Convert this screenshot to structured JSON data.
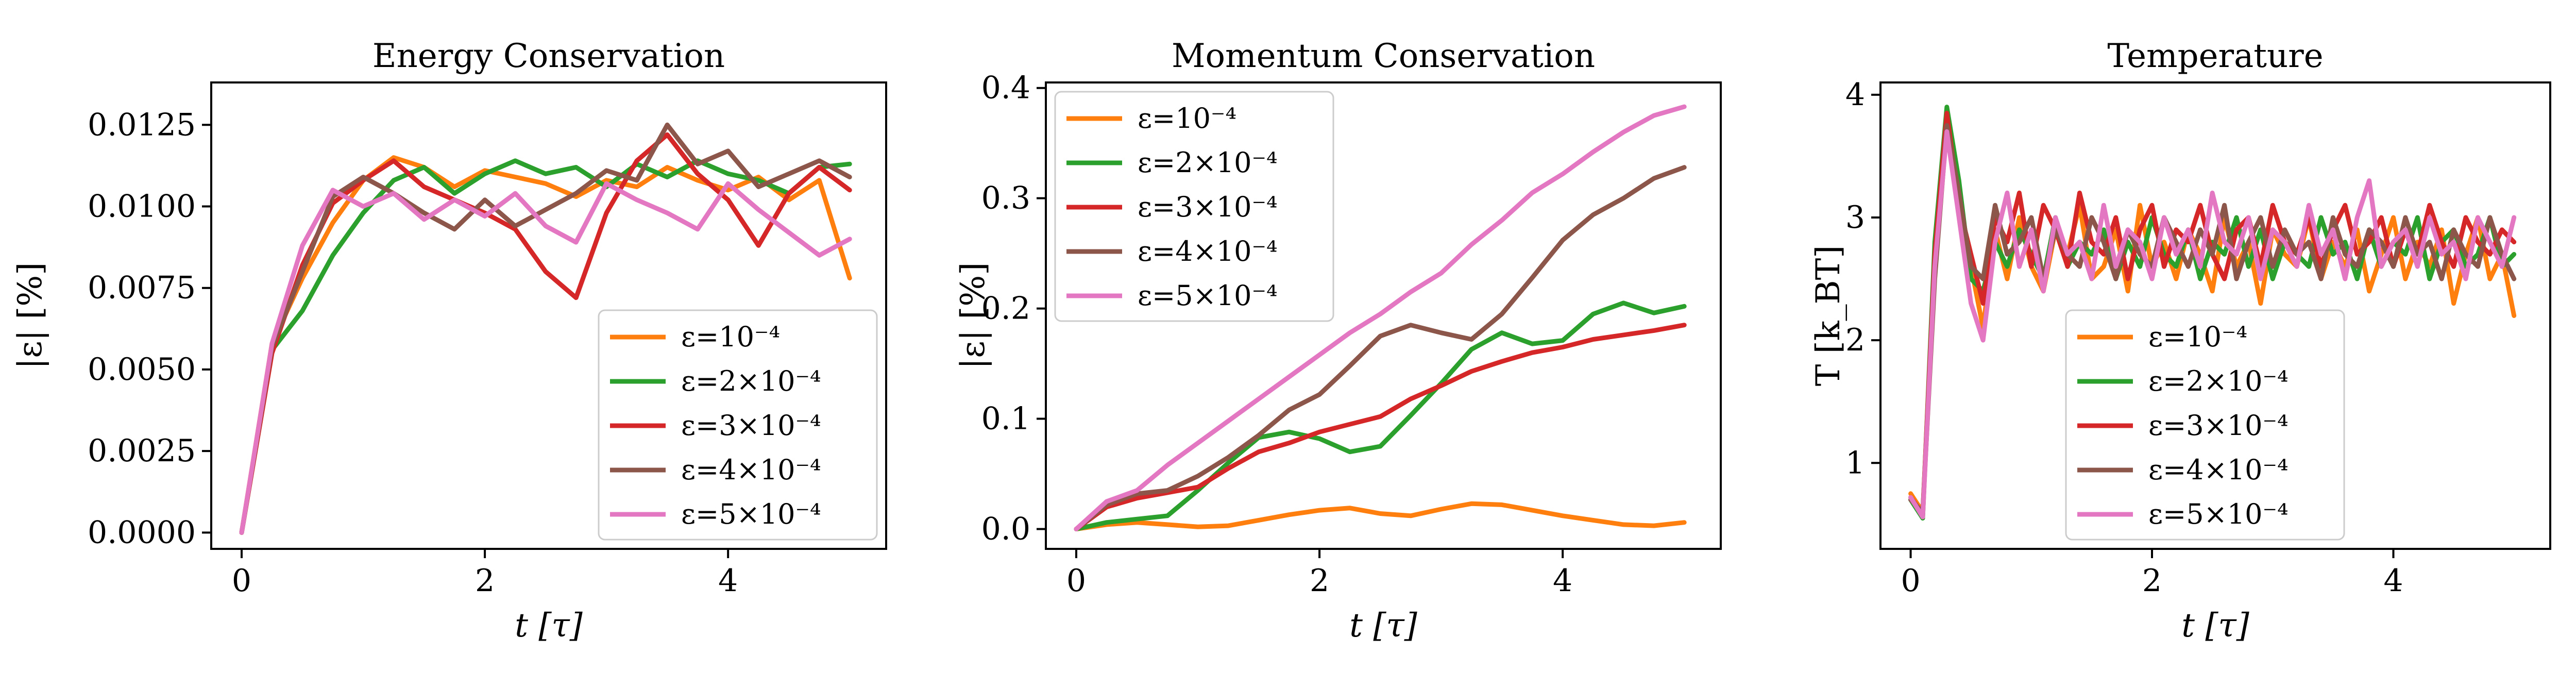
{
  "figure": {
    "legend_labels": [
      "ε=10⁻⁴",
      "ε=2×10⁻⁴",
      "ε=3×10⁻⁴",
      "ε=4×10⁻⁴",
      "ε=5×10⁻⁴"
    ]
  },
  "chart_data": [
    {
      "type": "line",
      "title": "Energy Conservation",
      "xlabel": "t [τ]",
      "ylabel": "|ε| [%]",
      "xlim": [
        -0.25,
        5.3
      ],
      "ylim": [
        -0.0005,
        0.0138
      ],
      "xticks": [
        0,
        2,
        4
      ],
      "xtick_labels": [
        "0",
        "2",
        "4"
      ],
      "yticks": [
        0,
        0.0025,
        0.005,
        0.0075,
        0.01,
        0.0125
      ],
      "ytick_labels": [
        "0.0000",
        "0.0025",
        "0.0050",
        "0.0075",
        "0.0100",
        "0.0125"
      ],
      "grid": false,
      "legend_position": "lower-right",
      "x": [
        0,
        0.25,
        0.5,
        0.75,
        1,
        1.25,
        1.5,
        1.75,
        2,
        2.25,
        2.5,
        2.75,
        3,
        3.25,
        3.5,
        3.75,
        4,
        4.25,
        4.5,
        4.75,
        5
      ],
      "series": [
        {
          "name": "ε=10⁻⁴",
          "color": "#ff7f0e",
          "values": [
            0,
            0.0058,
            0.0078,
            0.0095,
            0.0108,
            0.0115,
            0.0112,
            0.0106,
            0.0111,
            0.0109,
            0.0107,
            0.0103,
            0.0108,
            0.0106,
            0.0112,
            0.0108,
            0.0105,
            0.0109,
            0.0102,
            0.0108,
            0.0078
          ]
        },
        {
          "name": "ε=2×10⁻⁴",
          "color": "#2ca02c",
          "values": [
            0,
            0.0056,
            0.0068,
            0.0085,
            0.0098,
            0.0108,
            0.0112,
            0.0104,
            0.011,
            0.0114,
            0.011,
            0.0112,
            0.0106,
            0.0113,
            0.0109,
            0.0114,
            0.011,
            0.0108,
            0.0104,
            0.0112,
            0.0113
          ]
        },
        {
          "name": "ε=3×10⁻⁴",
          "color": "#d62728",
          "values": [
            0,
            0.0055,
            0.0082,
            0.0101,
            0.0108,
            0.0114,
            0.0106,
            0.0102,
            0.0098,
            0.0093,
            0.008,
            0.0072,
            0.0098,
            0.0114,
            0.0122,
            0.011,
            0.0102,
            0.0088,
            0.0104,
            0.0112,
            0.0105
          ]
        },
        {
          "name": "ε=4×10⁻⁴",
          "color": "#8c564b",
          "values": [
            0,
            0.0057,
            0.008,
            0.0103,
            0.0109,
            0.0104,
            0.0098,
            0.0093,
            0.0102,
            0.0094,
            0.0099,
            0.0104,
            0.0111,
            0.0108,
            0.0125,
            0.0113,
            0.0117,
            0.0106,
            0.011,
            0.0114,
            0.0109
          ]
        },
        {
          "name": "ε=5×10⁻⁴",
          "color": "#e377c2",
          "values": [
            0,
            0.0058,
            0.0088,
            0.0105,
            0.01,
            0.0104,
            0.0096,
            0.0102,
            0.0097,
            0.0104,
            0.0094,
            0.0089,
            0.0107,
            0.0102,
            0.0098,
            0.0093,
            0.0107,
            0.0099,
            0.0092,
            0.0085,
            0.009
          ]
        }
      ]
    },
    {
      "type": "line",
      "title": "Momentum Conservation",
      "xlabel": "t [τ]",
      "ylabel": "|ε| [%]",
      "xlim": [
        -0.25,
        5.3
      ],
      "ylim": [
        -0.018,
        0.405
      ],
      "xticks": [
        0,
        2,
        4
      ],
      "xtick_labels": [
        "0",
        "2",
        "4"
      ],
      "yticks": [
        0,
        0.1,
        0.2,
        0.3,
        0.4
      ],
      "ytick_labels": [
        "0.0",
        "0.1",
        "0.2",
        "0.3",
        "0.4"
      ],
      "grid": false,
      "legend_position": "upper-left",
      "x": [
        0,
        0.25,
        0.5,
        0.75,
        1,
        1.25,
        1.5,
        1.75,
        2,
        2.25,
        2.5,
        2.75,
        3,
        3.25,
        3.5,
        3.75,
        4,
        4.25,
        4.5,
        4.75,
        5
      ],
      "series": [
        {
          "name": "ε=10⁻⁴",
          "color": "#ff7f0e",
          "values": [
            0,
            0.004,
            0.006,
            0.004,
            0.002,
            0.003,
            0.008,
            0.013,
            0.017,
            0.019,
            0.014,
            0.012,
            0.018,
            0.023,
            0.022,
            0.017,
            0.012,
            0.008,
            0.004,
            0.003,
            0.006
          ]
        },
        {
          "name": "ε=2×10⁻⁴",
          "color": "#2ca02c",
          "values": [
            0,
            0.006,
            0.009,
            0.012,
            0.035,
            0.06,
            0.083,
            0.088,
            0.082,
            0.07,
            0.075,
            0.103,
            0.132,
            0.163,
            0.178,
            0.168,
            0.171,
            0.195,
            0.205,
            0.196,
            0.202
          ]
        },
        {
          "name": "ε=3×10⁻⁴",
          "color": "#d62728",
          "values": [
            0,
            0.02,
            0.028,
            0.033,
            0.038,
            0.055,
            0.07,
            0.078,
            0.088,
            0.095,
            0.102,
            0.118,
            0.13,
            0.143,
            0.152,
            0.16,
            0.165,
            0.172,
            0.176,
            0.18,
            0.185
          ]
        },
        {
          "name": "ε=4×10⁻⁴",
          "color": "#8c564b",
          "values": [
            0,
            0.022,
            0.032,
            0.035,
            0.048,
            0.065,
            0.085,
            0.108,
            0.122,
            0.148,
            0.175,
            0.185,
            0.178,
            0.172,
            0.195,
            0.228,
            0.262,
            0.285,
            0.3,
            0.318,
            0.328
          ]
        },
        {
          "name": "ε=5×10⁻⁴",
          "color": "#e377c2",
          "values": [
            0,
            0.025,
            0.035,
            0.058,
            0.078,
            0.098,
            0.118,
            0.138,
            0.158,
            0.178,
            0.195,
            0.215,
            0.232,
            0.258,
            0.28,
            0.305,
            0.322,
            0.342,
            0.36,
            0.375,
            0.383
          ]
        }
      ]
    },
    {
      "type": "line",
      "title": "Temperature",
      "xlabel": "t [τ]",
      "ylabel": "T [k_BT]",
      "xlim": [
        -0.25,
        5.3
      ],
      "ylim": [
        0.3,
        4.1
      ],
      "xticks": [
        0,
        2,
        4
      ],
      "xtick_labels": [
        "0",
        "2",
        "4"
      ],
      "yticks": [
        1,
        2,
        3,
        4
      ],
      "ytick_labels": [
        "1",
        "2",
        "3",
        "4"
      ],
      "grid": false,
      "legend_position": "lower-center",
      "x": [
        0,
        0.1,
        0.2,
        0.3,
        0.4,
        0.5,
        0.6,
        0.7,
        0.8,
        0.9,
        1,
        1.1,
        1.2,
        1.3,
        1.4,
        1.5,
        1.6,
        1.7,
        1.8,
        1.9,
        2,
        2.1,
        2.2,
        2.3,
        2.4,
        2.5,
        2.6,
        2.7,
        2.8,
        2.9,
        3,
        3.1,
        3.2,
        3.3,
        3.4,
        3.5,
        3.6,
        3.7,
        3.8,
        3.9,
        4,
        4.1,
        4.2,
        4.3,
        4.4,
        4.5,
        4.6,
        4.7,
        4.8,
        4.9,
        5
      ],
      "series": [
        {
          "name": "ε=10⁻⁴",
          "color": "#ff7f0e",
          "values": [
            0.75,
            0.6,
            2.6,
            3.8,
            3.2,
            2.6,
            2.1,
            2.9,
            2.5,
            3.0,
            2.6,
            2.4,
            2.9,
            2.7,
            3.1,
            2.5,
            2.6,
            2.9,
            2.4,
            3.1,
            2.6,
            2.8,
            2.5,
            2.9,
            2.7,
            2.4,
            3.0,
            2.6,
            2.8,
            2.3,
            2.9,
            2.7,
            2.6,
            3.0,
            2.5,
            2.8,
            2.6,
            2.9,
            2.4,
            2.7,
            3.0,
            2.5,
            2.8,
            2.6,
            2.9,
            2.3,
            2.7,
            3.0,
            2.5,
            2.7,
            2.2
          ]
        },
        {
          "name": "ε=2×10⁻⁴",
          "color": "#2ca02c",
          "values": [
            0.7,
            0.55,
            2.8,
            3.9,
            3.3,
            2.5,
            2.4,
            2.8,
            2.6,
            2.9,
            2.7,
            2.5,
            3.0,
            2.6,
            2.8,
            2.7,
            2.9,
            2.5,
            2.8,
            2.6,
            3.0,
            2.7,
            2.6,
            2.9,
            2.5,
            2.8,
            2.7,
            3.0,
            2.6,
            2.9,
            2.5,
            2.8,
            2.7,
            2.6,
            3.0,
            2.7,
            2.8,
            2.5,
            2.9,
            2.6,
            2.8,
            2.7,
            3.0,
            2.5,
            2.8,
            2.9,
            2.6,
            2.7,
            3.0,
            2.6,
            2.7
          ]
        },
        {
          "name": "ε=3×10⁻⁴",
          "color": "#d62728",
          "values": [
            0.72,
            0.58,
            2.7,
            3.85,
            3.1,
            2.7,
            2.3,
            3.0,
            2.8,
            3.2,
            2.6,
            3.1,
            2.9,
            2.6,
            3.2,
            2.8,
            2.7,
            3.0,
            2.5,
            2.9,
            3.1,
            2.6,
            2.9,
            2.8,
            3.1,
            2.7,
            2.5,
            2.9,
            3.0,
            2.6,
            3.1,
            2.8,
            2.7,
            3.0,
            2.6,
            2.9,
            3.1,
            2.7,
            2.8,
            3.0,
            2.6,
            2.9,
            2.7,
            3.1,
            2.8,
            2.6,
            3.0,
            2.8,
            2.7,
            2.9,
            2.8
          ]
        },
        {
          "name": "ε=4×10⁻⁴",
          "color": "#8c564b",
          "values": [
            0.7,
            0.6,
            2.5,
            3.75,
            3.2,
            2.6,
            2.5,
            3.1,
            2.7,
            2.8,
            3.0,
            2.5,
            2.9,
            2.7,
            2.6,
            3.0,
            2.8,
            2.5,
            2.9,
            2.7,
            2.6,
            3.0,
            2.8,
            2.6,
            2.9,
            2.7,
            3.1,
            2.5,
            2.8,
            3.0,
            2.6,
            2.9,
            2.7,
            2.8,
            2.5,
            3.0,
            2.7,
            2.6,
            2.9,
            2.8,
            2.6,
            3.0,
            2.7,
            2.8,
            2.5,
            2.9,
            2.7,
            2.6,
            3.0,
            2.7,
            2.5
          ]
        },
        {
          "name": "ε=5×10⁻⁴",
          "color": "#e377c2",
          "values": [
            0.72,
            0.56,
            2.6,
            3.7,
            3.0,
            2.3,
            2.0,
            2.8,
            3.2,
            2.6,
            2.9,
            2.4,
            3.0,
            2.7,
            2.8,
            2.5,
            3.1,
            2.6,
            2.9,
            2.8,
            2.5,
            3.0,
            2.7,
            2.9,
            2.6,
            3.2,
            2.8,
            2.7,
            3.0,
            2.5,
            2.9,
            2.8,
            2.6,
            3.1,
            2.7,
            2.9,
            2.5,
            3.0,
            3.3,
            2.6,
            2.8,
            2.9,
            2.6,
            3.0,
            2.7,
            2.8,
            2.5,
            3.0,
            2.8,
            2.6,
            3.0
          ]
        }
      ]
    }
  ]
}
